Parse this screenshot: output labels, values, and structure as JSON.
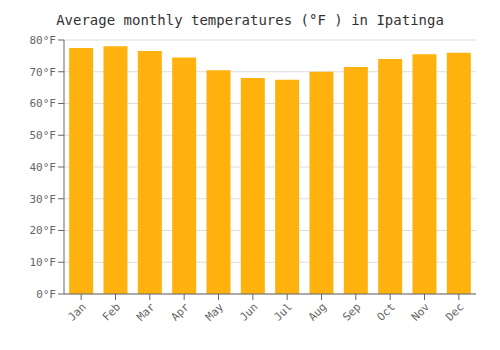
{
  "chart_data": {
    "type": "bar",
    "title": "Average monthly temperatures (°F ) in Ipatinga",
    "categories": [
      "Jan",
      "Feb",
      "Mar",
      "Apr",
      "May",
      "Jun",
      "Jul",
      "Aug",
      "Sep",
      "Oct",
      "Nov",
      "Dec"
    ],
    "values": [
      77.5,
      78.0,
      76.5,
      74.5,
      70.5,
      68.0,
      67.5,
      70.0,
      71.5,
      74.0,
      75.5,
      76.0
    ],
    "color": "#ffb20d",
    "ylim": [
      0,
      80
    ],
    "yticks": [
      {
        "value": 0,
        "label": "0°F"
      },
      {
        "value": 10,
        "label": "10°F"
      },
      {
        "value": 20,
        "label": "20°F"
      },
      {
        "value": 30,
        "label": "30°F"
      },
      {
        "value": 40,
        "label": "40°F"
      },
      {
        "value": 50,
        "label": "50°F"
      },
      {
        "value": 60,
        "label": "60°F"
      },
      {
        "value": 70,
        "label": "70°F"
      },
      {
        "value": 80,
        "label": "80°F"
      }
    ],
    "grid": true
  }
}
